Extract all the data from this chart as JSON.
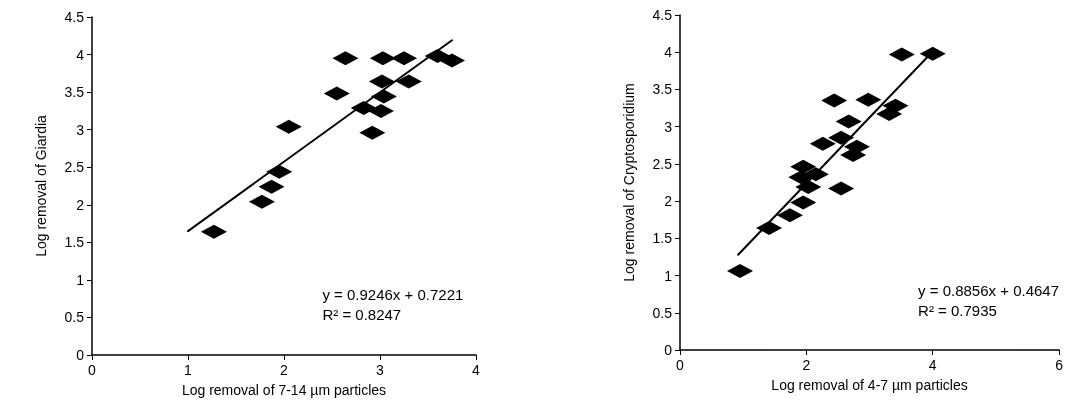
{
  "chart_data": [
    {
      "type": "scatter",
      "xlabel": "Log removal of 7-14 µm particles",
      "ylabel": "Log removal of Giardia",
      "xlim": [
        0,
        4
      ],
      "xticks": [
        0,
        1,
        2,
        3,
        4
      ],
      "ylim": [
        0,
        4.5
      ],
      "yticks": [
        0,
        0.5,
        1,
        1.5,
        2,
        2.5,
        3,
        3.5,
        4,
        4.5
      ],
      "grid": false,
      "marker": "diamond",
      "annotations": [
        "y = 0.9246x + 0.7221",
        "R² = 0.8247"
      ],
      "series": [
        {
          "color": "#000000",
          "x": [
            1.27,
            1.77,
            1.87,
            1.95,
            2.05,
            2.55,
            2.64,
            2.83,
            2.92,
            3.01,
            3.02,
            3.04,
            3.03,
            3.25,
            3.3,
            3.6,
            3.75
          ],
          "values": [
            1.64,
            2.04,
            2.24,
            2.44,
            3.04,
            3.48,
            3.95,
            3.29,
            2.96,
            3.25,
            3.64,
            3.44,
            3.95,
            3.95,
            3.64,
            3.98,
            3.92
          ]
        },
        {
          "type": "line",
          "color": "#000000",
          "line_style": "solid",
          "marker": "none",
          "x": [
            1,
            3.75
          ],
          "values": [
            1.65,
            4.19
          ]
        }
      ]
    },
    {
      "type": "scatter",
      "xlabel": "Log removal of 4-7 µm particles",
      "ylabel": "Log removal of Cryptosporidium",
      "xlim": [
        0,
        6
      ],
      "xticks": [
        0,
        2,
        4,
        6
      ],
      "ylim": [
        0,
        4.5
      ],
      "yticks": [
        0,
        0.5,
        1,
        1.5,
        2,
        2.5,
        3,
        3.5,
        4,
        4.5
      ],
      "grid": false,
      "marker": "diamond",
      "annotations": [
        "y = 0.8856x + 0.4647",
        "R² = 0.7935"
      ],
      "series": [
        {
          "color": "#000000",
          "x": [
            0.95,
            1.41,
            1.74,
            1.95,
            2.03,
            1.92,
            1.95,
            2.15,
            2.55,
            2.26,
            2.74,
            2.8,
            2.55,
            2.67,
            2.44,
            2.98,
            3.31,
            3.41,
            3.51,
            4.0
          ],
          "values": [
            1.06,
            1.64,
            1.81,
            1.98,
            2.19,
            2.32,
            2.46,
            2.36,
            2.17,
            2.77,
            2.62,
            2.73,
            2.85,
            3.07,
            3.35,
            3.36,
            3.17,
            3.28,
            3.97,
            3.98
          ]
        },
        {
          "type": "line",
          "color": "#000000",
          "line_style": "solid",
          "marker": "none",
          "x": [
            0.92,
            4.0
          ],
          "values": [
            1.28,
            4.01
          ]
        }
      ]
    }
  ]
}
